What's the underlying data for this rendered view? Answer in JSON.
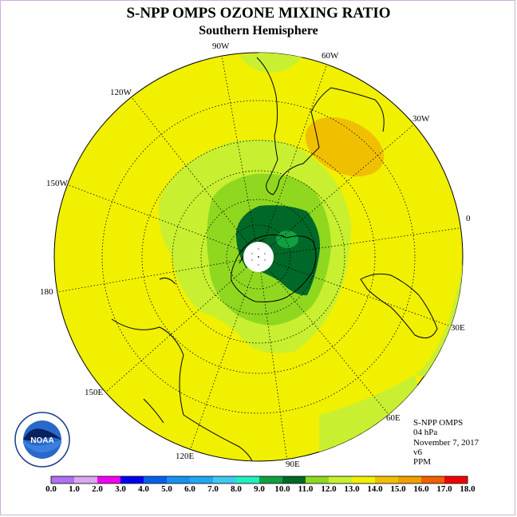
{
  "title": "S-NPP OMPS OZONE MIXING RATIO",
  "subtitle": "Southern Hemisphere",
  "longitude_labels": [
    "90W",
    "60W",
    "30W",
    "0",
    "120W",
    "150W",
    "180",
    "30E",
    "150E",
    "60E",
    "120E",
    "90E"
  ],
  "info": {
    "instrument": "S-NPP OMPS",
    "level": "04 hPa",
    "date": "November 7, 2017",
    "version": "v6",
    "units": "PPM"
  },
  "logo": {
    "text": "NOAA",
    "ring_text": "NATIONAL OCEANIC AND ATMOSPHERIC ADMINISTRATION · U.S. DEPARTMENT OF COMMERCE"
  },
  "colorbar": {
    "labels": [
      "0.0",
      "1.0",
      "2.0",
      "3.0",
      "4.0",
      "5.0",
      "6.0",
      "7.0",
      "8.0",
      "9.0",
      "10.0",
      "11.0",
      "12.0",
      "13.0",
      "14.0",
      "15.0",
      "16.0",
      "17.0",
      "18.0"
    ],
    "colors": [
      "#b070f0",
      "#d8a8f0",
      "#f000f0",
      "#0000f0",
      "#0060e8",
      "#1890f0",
      "#20a8f0",
      "#40c8f0",
      "#20f0c0",
      "#10a040",
      "#006828",
      "#90d820",
      "#c8f030",
      "#f0f000",
      "#f0c000",
      "#f0a000",
      "#f06000",
      "#f00000",
      "#a06040"
    ]
  },
  "colors": {
    "background_field": "#f0f000",
    "contour_11": "#90d820",
    "contour_12": "#c8f030",
    "contour_10": "#10a040",
    "contour_9": "#006828",
    "high_13": "#f0c000"
  }
}
